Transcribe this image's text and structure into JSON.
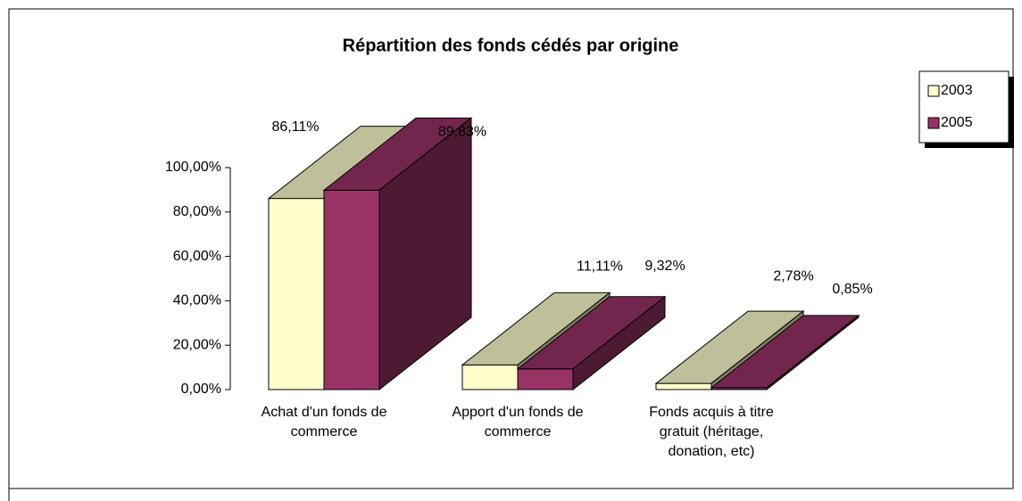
{
  "chart_data": {
    "type": "bar3d",
    "title": "Répartition des fonds cédés par origine",
    "categories": [
      "Achat d'un fonds de commerce",
      "Apport d'un fonds de commerce",
      "Fonds acquis à titre gratuit (héritage, donation, etc)"
    ],
    "series": [
      {
        "name": "2003",
        "color": "#ffffcc",
        "values": [
          86.11,
          11.11,
          2.78
        ],
        "value_labels": [
          "86,11%",
          "11,11%",
          "2,78%"
        ]
      },
      {
        "name": "2005",
        "color": "#993366",
        "values": [
          89.83,
          9.32,
          0.85
        ],
        "value_labels": [
          "89,83%",
          "9,32%",
          "0,85%"
        ]
      }
    ],
    "ylim": [
      0,
      100
    ],
    "yticks": [
      {
        "value": 0,
        "label": "0,00%"
      },
      {
        "value": 20,
        "label": "20,00%"
      },
      {
        "value": 40,
        "label": "40,00%"
      },
      {
        "value": 60,
        "label": "60,00%"
      },
      {
        "value": 80,
        "label": "80,00%"
      },
      {
        "value": 100,
        "label": "100,00%"
      }
    ],
    "legend": "right"
  }
}
